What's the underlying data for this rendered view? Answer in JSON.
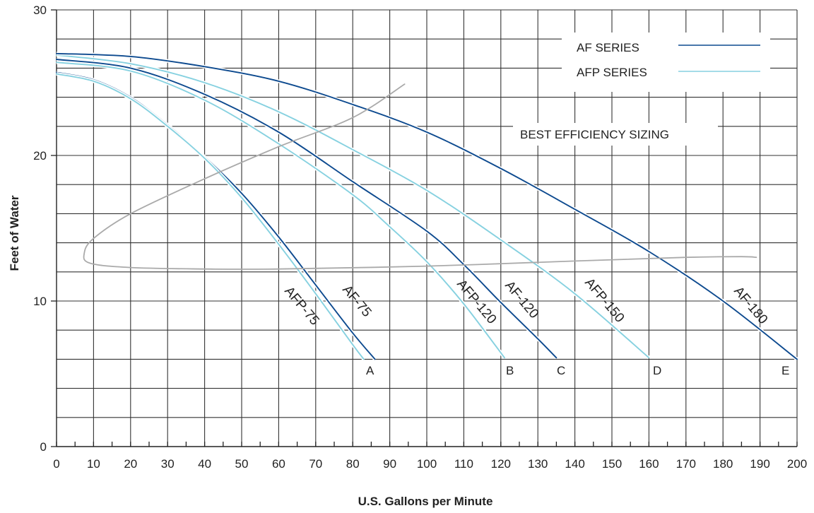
{
  "chart_data": {
    "type": "line",
    "title": "",
    "xlabel": "U.S. Gallons per Minute",
    "ylabel": "Feet of Water",
    "xlim": [
      0,
      200
    ],
    "ylim": [
      0,
      30
    ],
    "x_ticks": [
      0,
      10,
      20,
      30,
      40,
      50,
      60,
      70,
      80,
      90,
      100,
      110,
      120,
      130,
      140,
      150,
      160,
      170,
      180,
      190,
      200
    ],
    "y_ticks": [
      0,
      10,
      20,
      30
    ],
    "grid": true,
    "legend": {
      "placement": "top-right",
      "entries": [
        {
          "label": "AF SERIES",
          "color": "#0d4a8f"
        },
        {
          "label": "AFP SERIES",
          "color": "#86d1e0"
        }
      ]
    },
    "series": [
      {
        "name": "AF-75",
        "group": "AF SERIES",
        "end_label": "A",
        "x": [
          0,
          10,
          20,
          30,
          40,
          50,
          60,
          70,
          80,
          86
        ],
        "y": [
          25.7,
          25.2,
          24.0,
          22.1,
          19.9,
          17.4,
          14.4,
          11.1,
          7.8,
          6.0
        ]
      },
      {
        "name": "AFP-75",
        "group": "AFP SERIES",
        "end_label": "",
        "x": [
          0,
          10,
          20,
          30,
          40,
          50,
          60,
          70,
          80,
          83
        ],
        "y": [
          25.6,
          25.1,
          23.9,
          22.0,
          19.8,
          17.1,
          13.9,
          10.5,
          7.0,
          6.0
        ]
      },
      {
        "name": "AF-120",
        "group": "AF SERIES",
        "end_label": "C",
        "x": [
          0,
          20,
          40,
          60,
          80,
          100,
          110,
          120,
          130,
          135
        ],
        "y": [
          26.6,
          26.0,
          24.2,
          21.6,
          18.2,
          14.8,
          12.5,
          9.9,
          7.4,
          6.1
        ]
      },
      {
        "name": "AFP-120",
        "group": "AFP SERIES",
        "end_label": "B",
        "x": [
          0,
          20,
          40,
          60,
          80,
          90,
          100,
          110,
          121
        ],
        "y": [
          26.4,
          25.8,
          23.8,
          20.8,
          17.3,
          15.1,
          12.7,
          9.8,
          6.1
        ]
      },
      {
        "name": "AFP-150",
        "group": "AFP SERIES",
        "end_label": "D",
        "x": [
          0,
          20,
          40,
          60,
          80,
          100,
          120,
          140,
          160
        ],
        "y": [
          26.9,
          26.3,
          25.0,
          23.0,
          20.4,
          17.6,
          14.2,
          10.5,
          6.1
        ]
      },
      {
        "name": "AF-180",
        "group": "AF SERIES",
        "end_label": "E",
        "x": [
          0,
          20,
          40,
          60,
          80,
          100,
          120,
          140,
          160,
          180,
          200
        ],
        "y": [
          27.0,
          26.8,
          26.1,
          25.1,
          23.5,
          21.6,
          19.1,
          16.3,
          13.4,
          10.0,
          6.0
        ]
      },
      {
        "name": "BEST EFFICIENCY SIZING",
        "group": "annotation",
        "end_label": "",
        "x": [
          94,
          80,
          60,
          40,
          20,
          10,
          7.5,
          9,
          20,
          40,
          60,
          100,
          140,
          170,
          185,
          189
        ],
        "y": [
          24.9,
          22.6,
          20.6,
          18.4,
          16.0,
          14.3,
          13.3,
          12.6,
          12.3,
          12.2,
          12.2,
          12.4,
          12.75,
          13.0,
          13.05,
          13.0
        ]
      }
    ],
    "colors": {
      "af": "#0d4a8f",
      "afp": "#86d1e0",
      "bes": "#aaaaaa",
      "grid": "#333333"
    },
    "annotation_text": "BEST EFFICIENCY SIZING",
    "end_labels": [
      "A",
      "B",
      "C",
      "D",
      "E"
    ]
  }
}
